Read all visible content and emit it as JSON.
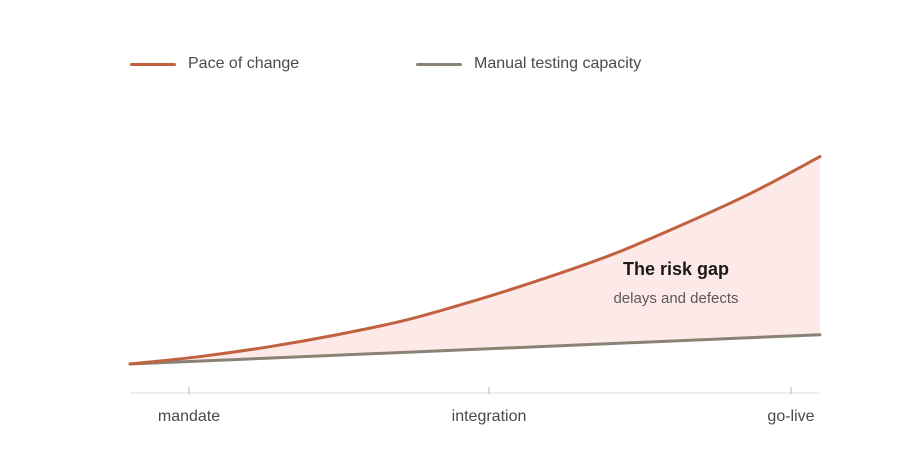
{
  "chart_data": {
    "type": "area",
    "title": "",
    "xlabel": "",
    "ylabel": "",
    "categories": [
      "mandate",
      "integration",
      "go-live"
    ],
    "x_range": [
      0,
      1
    ],
    "ylim": [
      0,
      1
    ],
    "grid": false,
    "legend_position": "top-left",
    "series": [
      {
        "name": "Pace of change",
        "color": "#c0623f",
        "x": [
          0,
          0.1,
          0.2,
          0.3,
          0.4,
          0.5,
          0.6,
          0.7,
          0.8,
          0.9,
          1.0
        ],
        "values": [
          0,
          0.03,
          0.07,
          0.12,
          0.18,
          0.26,
          0.35,
          0.45,
          0.57,
          0.7,
          0.85
        ]
      },
      {
        "name": "Manual testing capacity",
        "color": "#8a8275",
        "x": [
          0,
          1.0
        ],
        "values": [
          0,
          0.12
        ]
      }
    ],
    "gap_fill_color": "#fde9e8",
    "annotation": {
      "title": "The risk gap",
      "subtitle": "delays and defects"
    }
  }
}
